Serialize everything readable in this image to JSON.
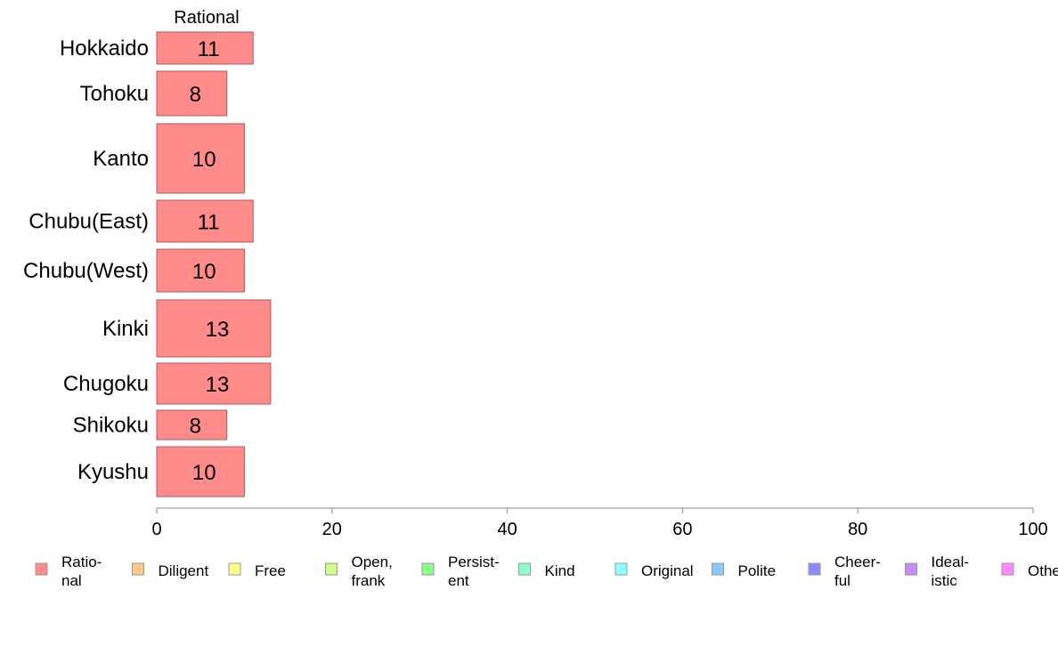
{
  "chart_data": {
    "type": "bar",
    "orientation": "horizontal",
    "categories": [
      "Hokkaido",
      "Tohoku",
      "Kanto",
      "Chubu(East)",
      "Chubu(West)",
      "Kinki",
      "Chugoku",
      "Shikoku",
      "Kyushu"
    ],
    "series": [
      {
        "name": "Rational",
        "values": [
          11,
          8,
          10,
          11,
          10,
          13,
          13,
          8,
          10
        ]
      }
    ],
    "data_labels": [
      "11",
      "8",
      "10",
      "11",
      "10",
      "13",
      "13",
      "8",
      "10"
    ],
    "xlim": [
      0,
      100
    ],
    "x_ticks": [
      "0",
      "20",
      "40",
      "60",
      "80",
      "100"
    ],
    "grid": false,
    "legend_position": "bottom",
    "legend": [
      {
        "lines": [
          "Ratio-",
          "nal"
        ],
        "color": "#ff8a8a"
      },
      {
        "lines": [
          "Diligent"
        ],
        "color": "#ffc98a"
      },
      {
        "lines": [
          "Free"
        ],
        "color": "#ffff8a"
      },
      {
        "lines": [
          "Open,",
          "frank"
        ],
        "color": "#c9ff8a"
      },
      {
        "lines": [
          "Persist-",
          "ent"
        ],
        "color": "#8aff8a"
      },
      {
        "lines": [
          "Kind"
        ],
        "color": "#8affc9"
      },
      {
        "lines": [
          "Original"
        ],
        "color": "#8affff"
      },
      {
        "lines": [
          "Polite"
        ],
        "color": "#8ac9ff"
      },
      {
        "lines": [
          "Cheer-",
          "ful"
        ],
        "color": "#8a8aff"
      },
      {
        "lines": [
          "Ideal-",
          "istic"
        ],
        "color": "#c98aff"
      },
      {
        "lines": [
          "Other"
        ],
        "color": "#ff8aff"
      }
    ],
    "bar_color": "#ff8a8a",
    "bar_stroke": "#b05a5a"
  }
}
